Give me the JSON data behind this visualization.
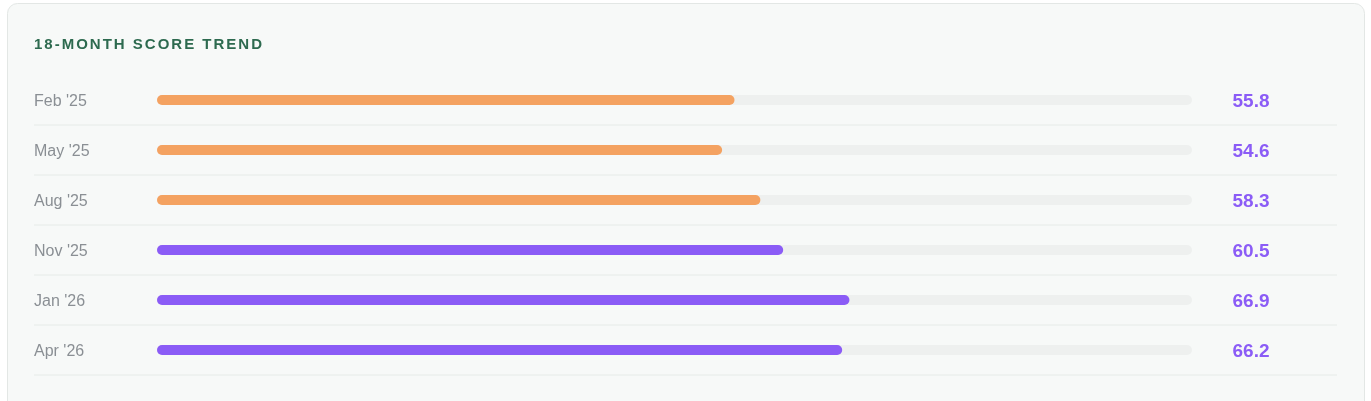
{
  "chart_data": {
    "type": "bar",
    "orientation": "horizontal",
    "title": "18-MONTH SCORE TREND",
    "categories": [
      "Feb '25",
      "May '25",
      "Aug '25",
      "Nov '25",
      "Jan '26",
      "Apr '26"
    ],
    "values": [
      55.8,
      54.6,
      58.3,
      60.5,
      66.9,
      66.2
    ],
    "colors": [
      "#f4a261",
      "#f4a261",
      "#f4a261",
      "#8b5cf6",
      "#8b5cf6",
      "#8b5cf6"
    ],
    "xlim": [
      0,
      100
    ],
    "data_labels": true
  }
}
